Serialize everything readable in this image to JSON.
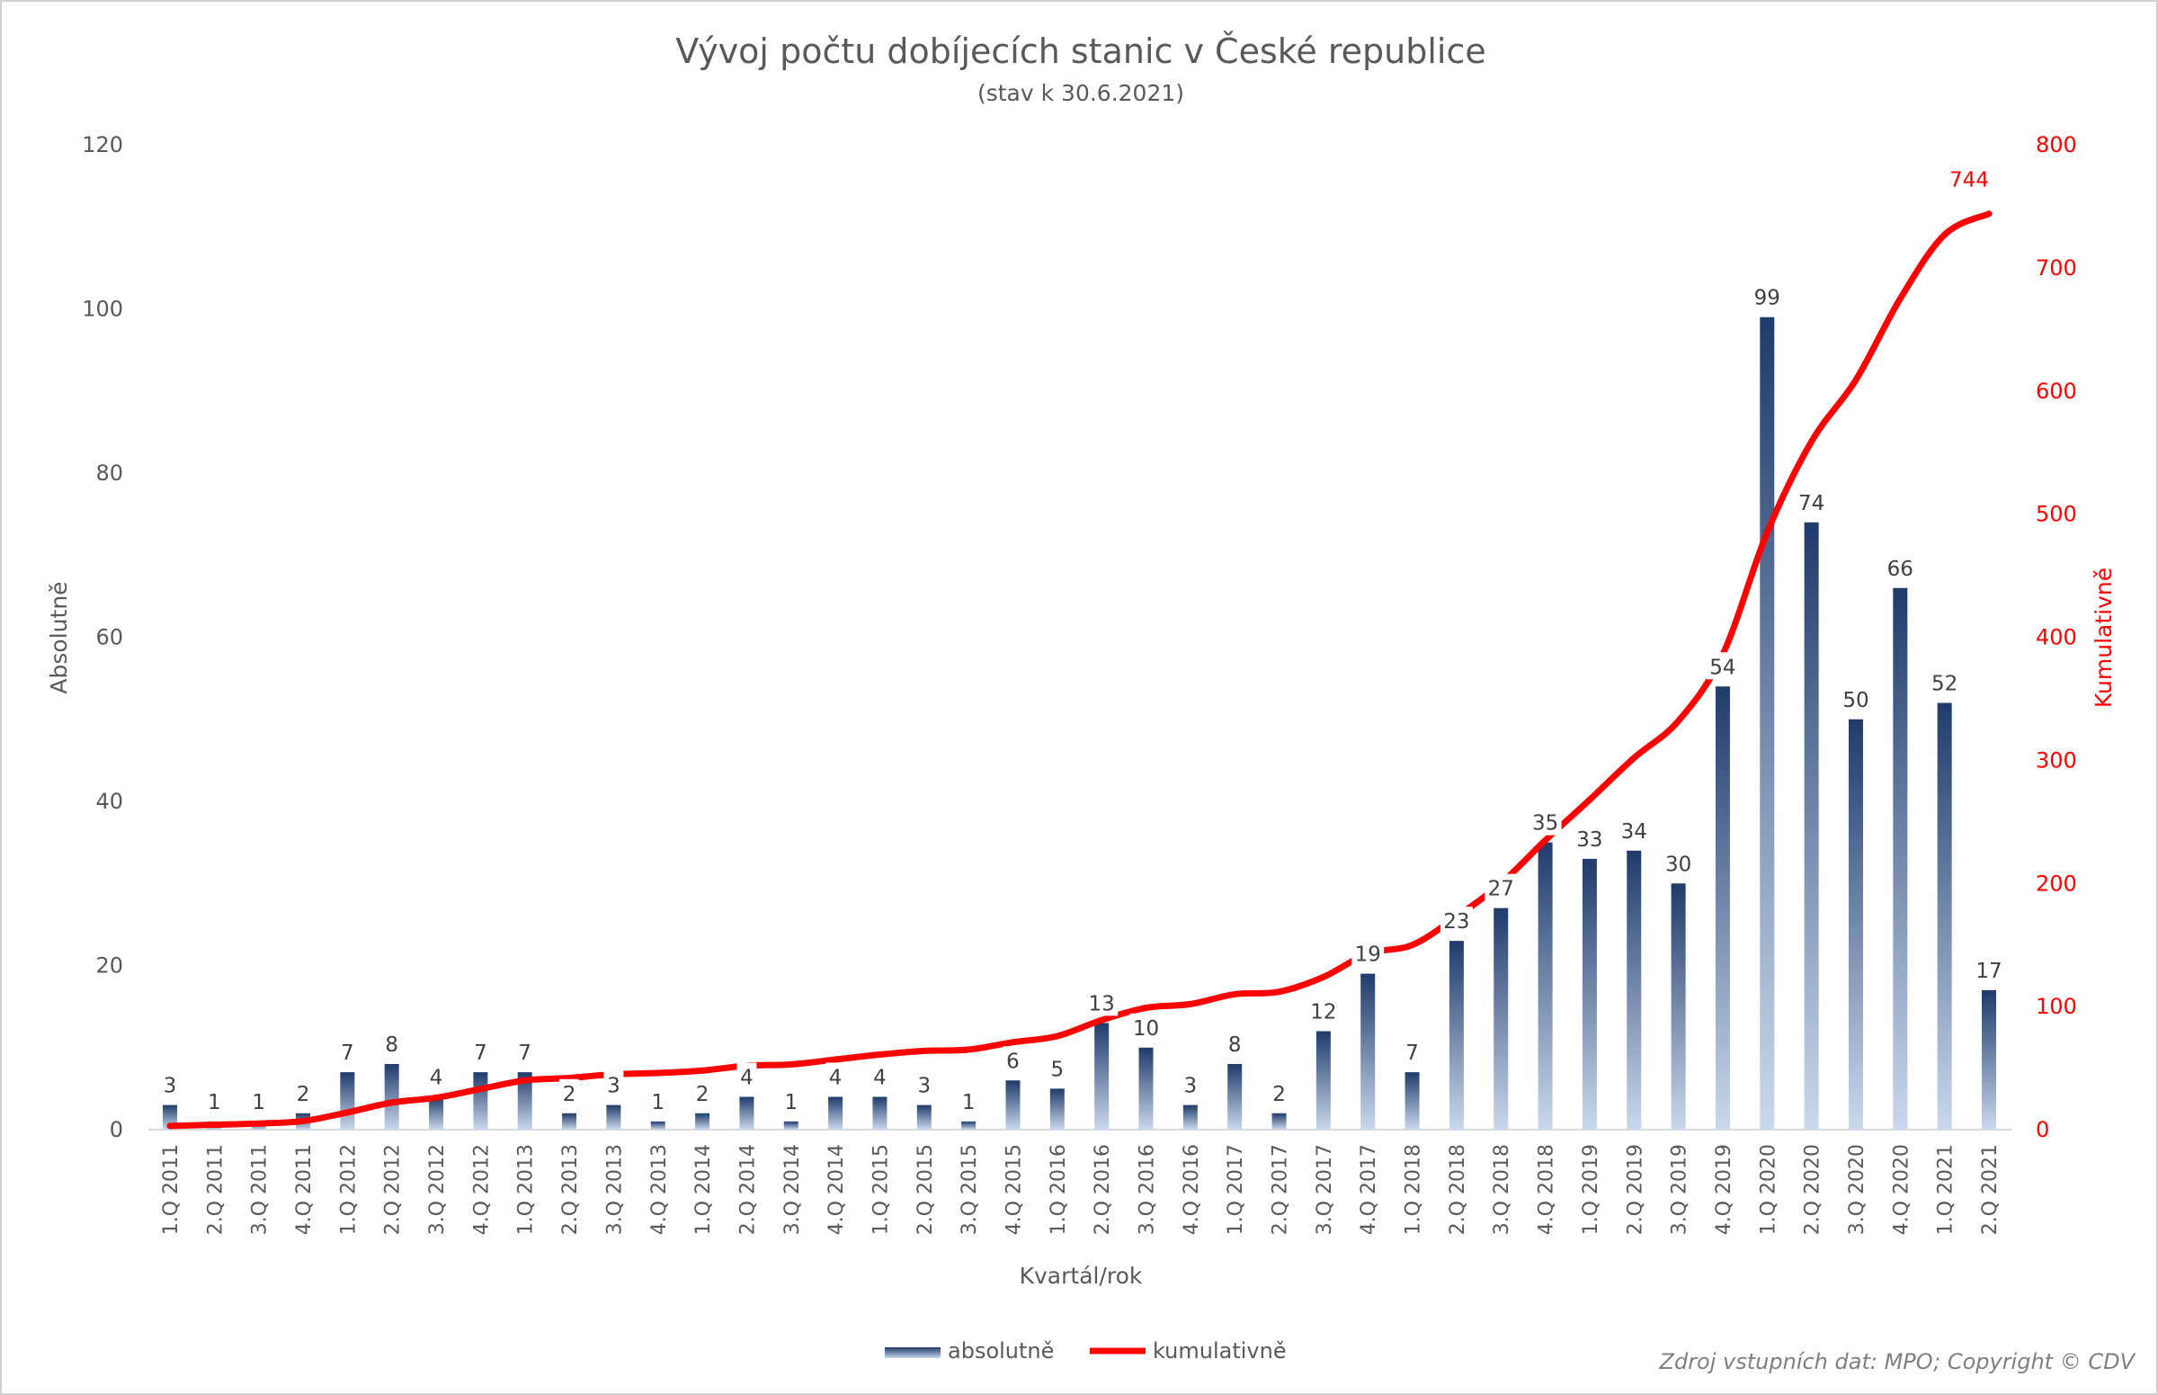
{
  "chart_data": {
    "type": "bar+line",
    "title": "Vývoj počtu dobíjecích stanic v České republice",
    "subtitle": "(stav k 30.6.2021)",
    "xlabel": "Kvartál/rok",
    "ylabel": "Absolutně",
    "y2label": "Kumulativně",
    "ylim": [
      0,
      120
    ],
    "yticks": [
      0,
      20,
      40,
      60,
      80,
      100,
      120
    ],
    "y2lim": [
      0,
      800
    ],
    "y2ticks": [
      0,
      100,
      200,
      300,
      400,
      500,
      600,
      700,
      800
    ],
    "grid": false,
    "legend_position": "bottom",
    "categories": [
      "1.Q 2011",
      "2.Q 2011",
      "3.Q 2011",
      "4.Q 2011",
      "1.Q 2012",
      "2.Q 2012",
      "3.Q 2012",
      "4.Q 2012",
      "1.Q 2013",
      "2.Q 2013",
      "3.Q 2013",
      "4.Q 2013",
      "1.Q 2014",
      "2.Q 2014",
      "3.Q 2014",
      "4.Q 2014",
      "1.Q 2015",
      "2.Q 2015",
      "3.Q 2015",
      "4.Q 2015",
      "1.Q 2016",
      "2.Q 2016",
      "3.Q 2016",
      "4.Q 2016",
      "1.Q 2017",
      "2.Q 2017",
      "3.Q 2017",
      "4.Q 2017",
      "1.Q 2018",
      "2.Q 2018",
      "3.Q 2018",
      "4.Q 2018",
      "1.Q 2019",
      "2.Q 2019",
      "3.Q 2019",
      "4.Q 2019",
      "1.Q 2020",
      "2.Q 2020",
      "3.Q 2020",
      "4.Q 2020",
      "1.Q 2021",
      "2.Q 2021"
    ],
    "series": [
      {
        "name": "absolutně",
        "type": "bar",
        "axis": "left",
        "color": "#1f3b6b",
        "values": [
          3,
          1,
          1,
          2,
          7,
          8,
          4,
          7,
          7,
          2,
          3,
          1,
          2,
          4,
          1,
          4,
          4,
          3,
          1,
          6,
          5,
          13,
          10,
          3,
          8,
          2,
          12,
          19,
          7,
          23,
          27,
          35,
          33,
          34,
          30,
          54,
          99,
          74,
          50,
          66,
          52,
          17
        ]
      },
      {
        "name": "kumulativně",
        "type": "line",
        "axis": "right",
        "color": "#ff0000",
        "values": [
          3,
          4,
          5,
          7,
          14,
          22,
          26,
          33,
          40,
          42,
          45,
          46,
          48,
          52,
          53,
          57,
          61,
          64,
          65,
          71,
          76,
          89,
          99,
          102,
          110,
          112,
          124,
          143,
          150,
          173,
          200,
          235,
          268,
          302,
          332,
          386,
          485,
          559,
          609,
          675,
          727,
          744
        ],
        "last_label": "744"
      }
    ]
  },
  "source": "Zdroj vstupních dat: MPO; Copyright © CDV"
}
